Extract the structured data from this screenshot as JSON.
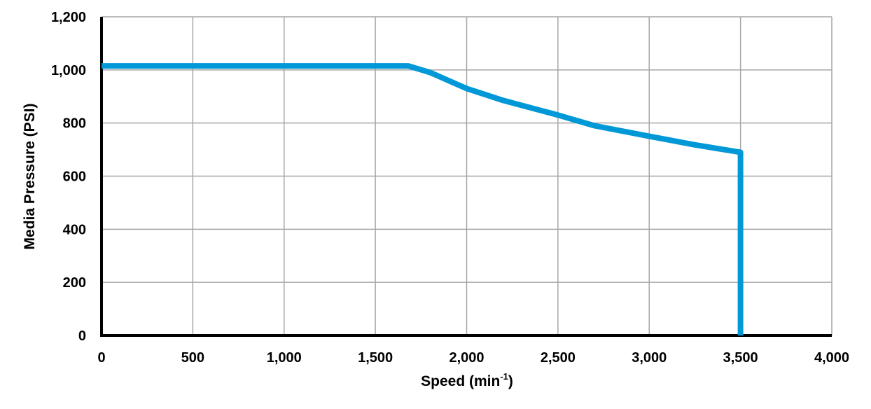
{
  "chart_data": {
    "type": "line",
    "title": "",
    "xlabel": "Speed (min-1)",
    "xlabel_main": "Speed (min",
    "xlabel_sup": "-1",
    "xlabel_close": ")",
    "ylabel": "Media Pressure (PSI)",
    "xlim": [
      0,
      4000
    ],
    "ylim": [
      0,
      1200
    ],
    "x_ticks": [
      0,
      500,
      1000,
      1500,
      2000,
      2500,
      3000,
      3500,
      4000
    ],
    "x_tick_labels": [
      "0",
      "500",
      "1,000",
      "1,500",
      "2,000",
      "2,500",
      "3,000",
      "3,500",
      "4,000"
    ],
    "y_ticks": [
      0,
      200,
      400,
      600,
      800,
      1000,
      1200
    ],
    "y_tick_labels": [
      "0",
      "200",
      "400",
      "600",
      "800",
      "1,000",
      "1,200"
    ],
    "grid": true,
    "legend": null,
    "series": [
      {
        "name": "Media Pressure",
        "color": "#0098d6",
        "x": [
          0,
          1680,
          1800,
          2000,
          2200,
          2500,
          2700,
          3000,
          3250,
          3500,
          3500
        ],
        "y": [
          1015,
          1015,
          990,
          930,
          885,
          830,
          790,
          750,
          718,
          690,
          0
        ]
      }
    ]
  },
  "colors": {
    "line": "#0098d6",
    "grid": "#a6a6a6",
    "axis": "#000000"
  }
}
